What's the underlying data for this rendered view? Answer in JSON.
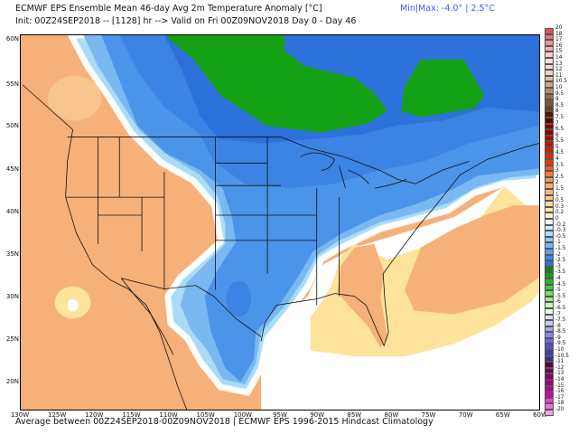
{
  "header": {
    "title": "ECMWF EPS Ensemble Mean 46-day Avg 2m Temperature Anomaly [°C]",
    "subtitle": "Init: 00Z24SEP2018 -- [1128] hr --> Valid on Fri 00Z09NOV2018  Day 0 - Day 46",
    "minmax": "Min|Max: -4.0° | 2.5°C"
  },
  "footer": "Average between 00Z24SEP2018-00Z09NOV2018 | ECMWF EPS 1996-2015 Hindcast Climatology",
  "axes": {
    "lat_labels": [
      "60N",
      "55N",
      "50N",
      "45N",
      "40N",
      "35N",
      "30N",
      "25N",
      "20N"
    ],
    "lon_labels": [
      "130W",
      "125W",
      "120W",
      "115W",
      "110W",
      "105W",
      "100W",
      "95W",
      "90W",
      "85W",
      "80W",
      "75W",
      "70W",
      "65W",
      "60W"
    ]
  },
  "colorbar": {
    "labels": [
      "20",
      "18",
      "17",
      "16",
      "15",
      "14",
      "13",
      "12",
      "11",
      "10.5",
      "10",
      "9.5",
      "9",
      "8.5",
      "8",
      "7.5",
      "7",
      "6.5",
      "6",
      "5.5",
      "5",
      "4.5",
      "4",
      "3.5",
      "3",
      "2.5",
      "2",
      "1.5",
      "1",
      "0.5",
      "0.3",
      "0.2",
      "0",
      "-0.2",
      "-0.3",
      "-0.5",
      "-1",
      "-1.5",
      "-2",
      "-2.5",
      "-3",
      "-3.5",
      "-4",
      "-4.5",
      "-5",
      "-5.5",
      "-6",
      "-6.5",
      "-7",
      "-7.5",
      "-8",
      "-8.5",
      "-9",
      "-9.5",
      "-10",
      "-10.5",
      "-11",
      "-12",
      "-13",
      "-14",
      "-15",
      "-16",
      "-17",
      "-18",
      "-20"
    ],
    "colors": [
      "#e05060",
      "#e87078",
      "#f09098",
      "#f4b0b4",
      "#f8d0d0",
      "#fae0e0",
      "#f4dcd8",
      "#ecd0c8",
      "#e0c0b0",
      "#c8a888",
      "#b09070",
      "#987050",
      "#805838",
      "#684020",
      "#501808",
      "#600000",
      "#800000",
      "#900800",
      "#a01000",
      "#b81800",
      "#d02000",
      "#e02800",
      "#f03800",
      "#f85820",
      "#f87838",
      "#f89850",
      "#f8ac68",
      "#f8bc80",
      "#f8cc90",
      "#fcdc98",
      "#fde8a8",
      "#fff4c8",
      "#ffffff",
      "#c8f0fc",
      "#a8e0f8",
      "#90ccf4",
      "#78b8f0",
      "#5aa0ee",
      "#3d88e8",
      "#2a70d8",
      "#0a8a0a",
      "#14a014",
      "#28b828",
      "#40cc40",
      "#70dc60",
      "#a0e890",
      "#c8f4c0",
      "#e4fce0",
      "#e0e0fc",
      "#c8c8f8",
      "#a8a8f0",
      "#8888e8",
      "#6a6ae0",
      "#5050c8",
      "#4040b0",
      "#303098",
      "#5a0040",
      "#700050",
      "#880068",
      "#a00080",
      "#b80098",
      "#d000b0",
      "#e840d0",
      "#f070e0",
      "#f8a0f0"
    ]
  },
  "palette": {
    "warm": "#f6b079",
    "warm_light": "#fde39b",
    "neutral": "#ffffff",
    "cool_edge": "#a8dcf8",
    "cool": "#7ab8f2",
    "cool_mid": "#4c93ea",
    "cool_deep": "#2c70da",
    "green": "#14a014"
  }
}
